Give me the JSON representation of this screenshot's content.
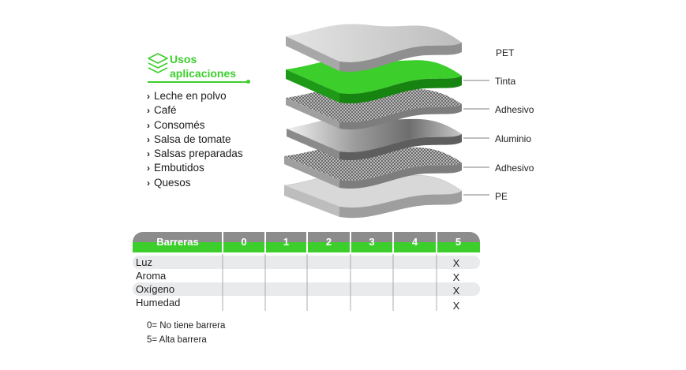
{
  "uses": {
    "icon": "layers-icon",
    "title_line1": "Usos",
    "title_line2": "aplicaciones",
    "items": [
      "Leche en polvo",
      "Café",
      "Consomés",
      "Salsa de tomate",
      "Salsas preparadas",
      "Embutidos",
      "Quesos"
    ]
  },
  "layers": [
    {
      "label": "PET"
    },
    {
      "label": "Tinta"
    },
    {
      "label": "Adhesivo"
    },
    {
      "label": "Aluminio"
    },
    {
      "label": "Adhesivo"
    },
    {
      "label": "PE"
    }
  ],
  "table": {
    "header": "Barreras",
    "levels": [
      "0",
      "1",
      "2",
      "3",
      "4",
      "5"
    ],
    "rows": [
      {
        "label": "Luz",
        "mark": "X"
      },
      {
        "label": "Aroma",
        "mark": "X"
      },
      {
        "label": "Oxígeno",
        "mark": "X"
      },
      {
        "label": "Humedad",
        "mark": "X"
      }
    ]
  },
  "notes": [
    "0= No tiene barrera",
    "5= Alta barrera"
  ],
  "colors": {
    "accent_green": "#3ccf2c",
    "header_gray": "#8c8c8c",
    "row_band": "#e9eaec"
  }
}
